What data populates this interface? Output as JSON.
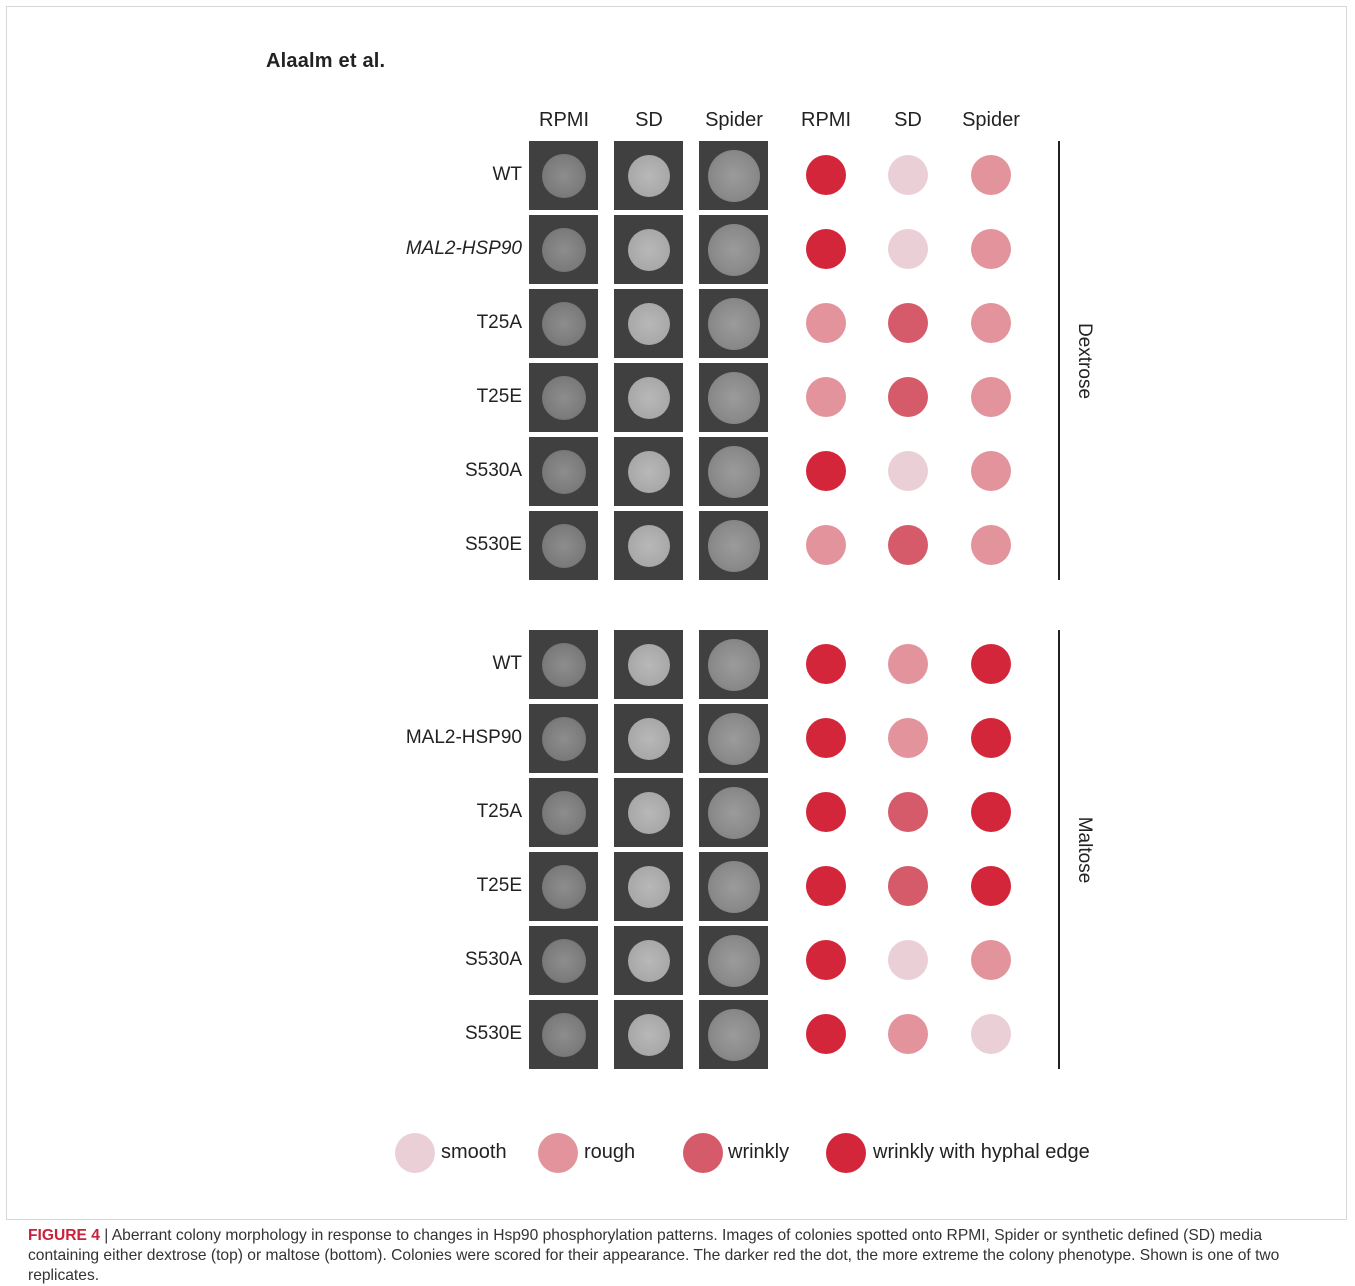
{
  "author": "Alaalm et al.",
  "column_headers": [
    "RPMI",
    "SD",
    "Spider",
    "RPMI",
    "SD",
    "Spider"
  ],
  "colors": {
    "smooth": "#ead0d6",
    "rough": "#e2939c",
    "wrinkly": "#d55a6a",
    "wrinkly_hyphal": "#d4263a",
    "tile": "#404040"
  },
  "groups": [
    {
      "label": "Dextrose",
      "rows": [
        {
          "strain": "WT",
          "italic": false,
          "scores": [
            "wrinkly_hyphal",
            "smooth",
            "rough"
          ]
        },
        {
          "strain": "MAL2-HSP90",
          "italic": true,
          "scores": [
            "wrinkly_hyphal",
            "smooth",
            "rough"
          ]
        },
        {
          "strain": "T25A",
          "italic": false,
          "scores": [
            "rough",
            "wrinkly",
            "rough"
          ]
        },
        {
          "strain": "T25E",
          "italic": false,
          "scores": [
            "rough",
            "wrinkly",
            "rough"
          ]
        },
        {
          "strain": "S530A",
          "italic": false,
          "scores": [
            "wrinkly_hyphal",
            "smooth",
            "rough"
          ]
        },
        {
          "strain": "S530E",
          "italic": false,
          "scores": [
            "rough",
            "wrinkly",
            "rough"
          ]
        }
      ]
    },
    {
      "label": "Maltose",
      "rows": [
        {
          "strain": "WT",
          "italic": false,
          "scores": [
            "wrinkly_hyphal",
            "rough",
            "wrinkly_hyphal"
          ]
        },
        {
          "strain": "MAL2-HSP90",
          "italic": false,
          "scores": [
            "wrinkly_hyphal",
            "rough",
            "wrinkly_hyphal"
          ]
        },
        {
          "strain": "T25A",
          "italic": false,
          "scores": [
            "wrinkly_hyphal",
            "wrinkly",
            "wrinkly_hyphal"
          ]
        },
        {
          "strain": "T25E",
          "italic": false,
          "scores": [
            "wrinkly_hyphal",
            "wrinkly",
            "wrinkly_hyphal"
          ]
        },
        {
          "strain": "S530A",
          "italic": false,
          "scores": [
            "wrinkly_hyphal",
            "smooth",
            "rough"
          ]
        },
        {
          "strain": "S530E",
          "italic": false,
          "scores": [
            "wrinkly_hyphal",
            "rough",
            "smooth"
          ]
        }
      ]
    }
  ],
  "legend": [
    {
      "key": "smooth",
      "label": "smooth"
    },
    {
      "key": "rough",
      "label": "rough"
    },
    {
      "key": "wrinkly",
      "label": "wrinkly"
    },
    {
      "key": "wrinkly_hyphal",
      "label": "wrinkly with hyphal edge"
    }
  ],
  "caption": {
    "figure_label": "FIGURE 4",
    "separator": " | ",
    "text": "Aberrant colony morphology in response to changes in Hsp90 phosphorylation patterns. Images of colonies spotted onto RPMI, Spider or synthetic defined (SD) media containing either dextrose (top) or maltose (bottom). Colonies were scored for their appearance. The darker red the dot, the more extreme the colony phenotype. Shown is one of two replicates."
  }
}
